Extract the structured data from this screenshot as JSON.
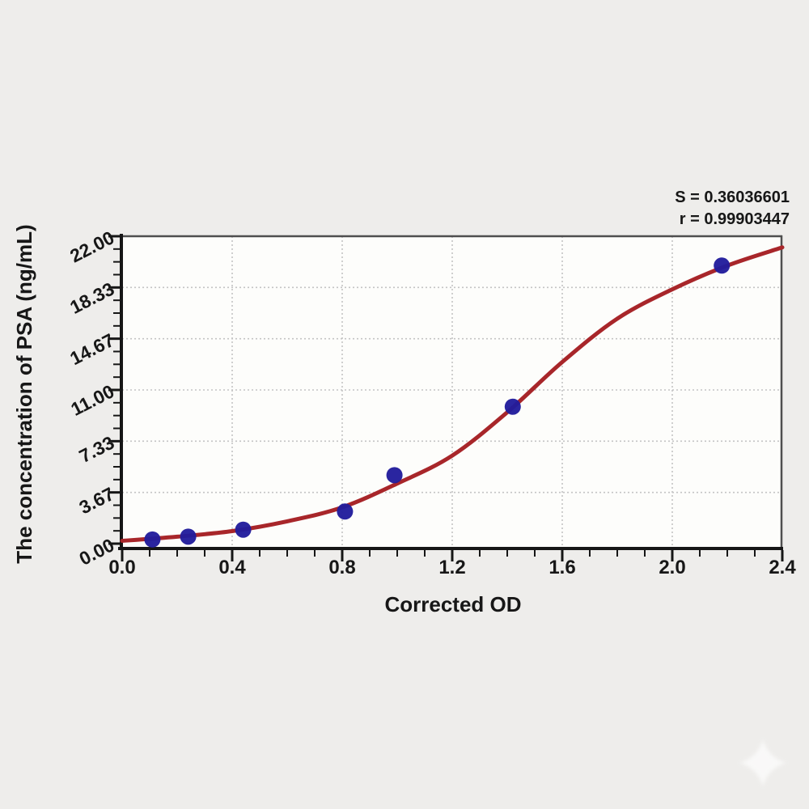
{
  "page": {
    "background_color": "#eeedeb",
    "watermark_icon": "sparkle"
  },
  "chart_data": {
    "type": "scatter",
    "title": "",
    "xlabel": "Corrected OD",
    "ylabel": "The concentration of PSA (ng/mL)",
    "xlim": [
      0,
      2.4
    ],
    "ylim": [
      0,
      22
    ],
    "x_tick_labels": [
      "0.0",
      "0.4",
      "0.8",
      "1.2",
      "1.6",
      "2.0",
      "2.4"
    ],
    "x_tick_values": [
      0,
      0.4,
      0.8,
      1.2,
      1.6,
      2.0,
      2.4
    ],
    "x_minor_step": 0.1,
    "y_tick_labels": [
      "0.00",
      "3.67",
      "7.33",
      "11.00",
      "14.67",
      "18.33",
      "22.00"
    ],
    "y_tick_values": [
      0,
      3.667,
      7.333,
      11,
      14.667,
      18.333,
      22
    ],
    "y_minor_divisions_per_major": 4,
    "grid": "dotted gridlines at major ticks",
    "legend": null,
    "annotations": {
      "s_label": "S = 0.36036601",
      "r_label": "r = 0.99903447"
    },
    "points": [
      {
        "x": 0.11,
        "y": 0.3
      },
      {
        "x": 0.24,
        "y": 0.5
      },
      {
        "x": 0.44,
        "y": 1.0
      },
      {
        "x": 0.81,
        "y": 2.3
      },
      {
        "x": 0.99,
        "y": 4.9
      },
      {
        "x": 1.42,
        "y": 9.8
      },
      {
        "x": 2.18,
        "y": 19.9
      }
    ],
    "fit_curve": {
      "x": [
        0.0,
        0.2,
        0.4,
        0.6,
        0.8,
        1.0,
        1.2,
        1.4,
        1.6,
        1.8,
        2.0,
        2.2,
        2.4
      ],
      "y": [
        0.2,
        0.5,
        0.9,
        1.6,
        2.6,
        4.3,
        6.3,
        9.4,
        13.0,
        16.1,
        18.2,
        19.9,
        21.2
      ]
    },
    "colors": {
      "curve": "#a8262a",
      "points": "#211c9c",
      "grid": "#c4c4c4",
      "axis": "#161616",
      "frame": "#4f4f4f",
      "plot_background": "#fdfdfb"
    }
  }
}
